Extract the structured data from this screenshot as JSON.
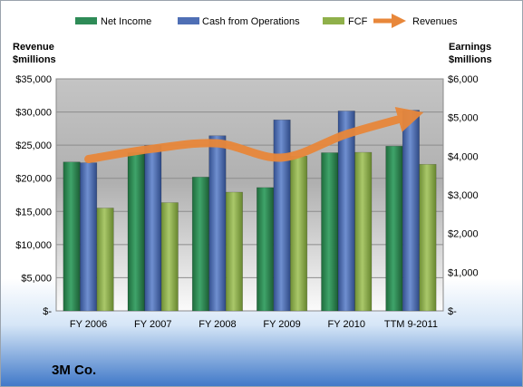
{
  "chart_data": {
    "type": "bar",
    "company": "3M Co.",
    "categories": [
      "FY 2006",
      "FY 2007",
      "FY 2008",
      "FY 2009",
      "FY 2010",
      "TTM 9-2011"
    ],
    "left_axis": {
      "title_line1": "Revenue",
      "title_line2": "$millions",
      "ylim": [
        0,
        35000
      ],
      "ticks": [
        0,
        5000,
        10000,
        15000,
        20000,
        25000,
        30000,
        35000
      ],
      "tick_labels": [
        "$-",
        "$5,000",
        "$10,000",
        "$15,000",
        "$20,000",
        "$25,000",
        "$30,000",
        "$35,000"
      ]
    },
    "right_axis": {
      "title_line1": "Earnings",
      "title_line2": "$millions",
      "ylim": [
        0,
        6000
      ],
      "ticks": [
        0,
        1000,
        2000,
        3000,
        4000,
        5000,
        6000
      ],
      "tick_labels": [
        "$-",
        "$1,000",
        "$2,000",
        "$3,000",
        "$4,000",
        "$5,000",
        "$6,000"
      ]
    },
    "series": [
      {
        "name": "Net Income",
        "type": "bar",
        "axis": "right",
        "color": "#2e8b57",
        "values": [
          3850,
          4090,
          3460,
          3190,
          4090,
          4260
        ]
      },
      {
        "name": "Cash from Operations",
        "type": "bar",
        "axis": "right",
        "color": "#4f6fb5",
        "values": [
          3830,
          4280,
          4530,
          4940,
          5170,
          5190
        ]
      },
      {
        "name": "FCF",
        "type": "bar",
        "axis": "right",
        "color": "#8fb04a",
        "values": [
          2660,
          2800,
          3070,
          4000,
          4100,
          3790
        ]
      },
      {
        "name": "Revenues",
        "type": "line",
        "axis": "left",
        "color": "#e8873a",
        "values": [
          22900,
          24460,
          25270,
          23120,
          26660,
          29400
        ]
      }
    ],
    "grid": true,
    "legend_position": "top"
  }
}
